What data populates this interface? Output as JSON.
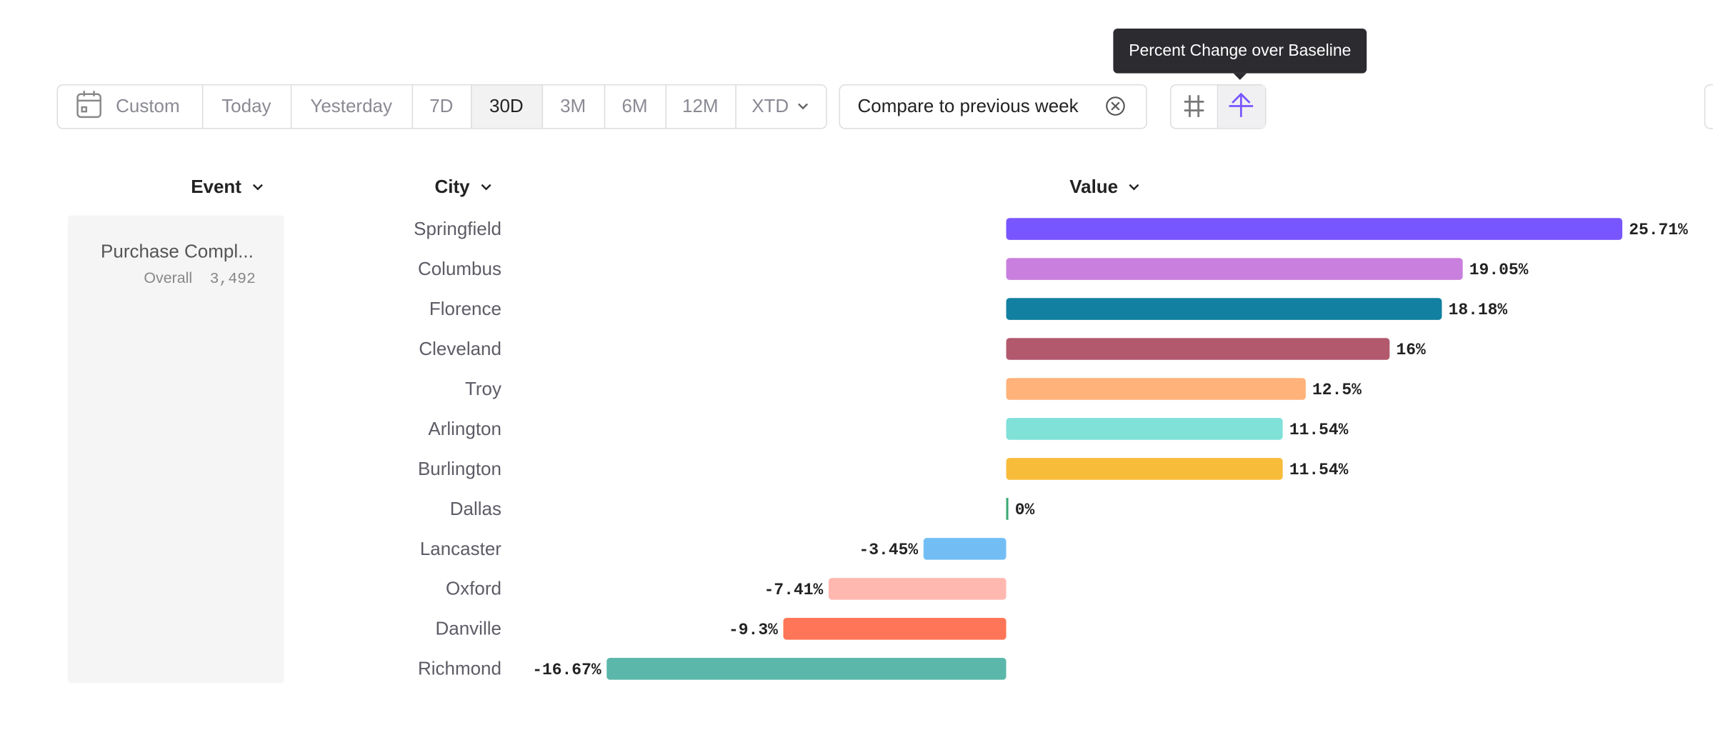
{
  "toolbar": {
    "ranges": [
      "Custom",
      "Today",
      "Yesterday",
      "7D",
      "30D",
      "3M",
      "6M",
      "12M",
      "XTD"
    ],
    "selected": "30D",
    "compare": "Compare to previous week"
  },
  "tooltip": "Percent Change over Baseline",
  "columns": [
    "Event",
    "City",
    "Value"
  ],
  "event": {
    "name": "Purchase Compl...",
    "scope": "Overall",
    "count": "3,492"
  },
  "chart_data": {
    "type": "bar",
    "orientation": "horizontal",
    "categories": [
      "Springfield",
      "Columbus",
      "Florence",
      "Cleveland",
      "Troy",
      "Arlington",
      "Burlington",
      "Dallas",
      "Lancaster",
      "Oxford",
      "Danville",
      "Richmond"
    ],
    "values": [
      25.71,
      19.05,
      18.18,
      16,
      12.5,
      11.54,
      11.54,
      0,
      -3.45,
      -7.41,
      -9.3,
      -16.67
    ],
    "value_labels": [
      "25.71%",
      "19.05%",
      "18.18%",
      "16%",
      "12.5%",
      "11.54%",
      "11.54%",
      "0%",
      "-3.45%",
      "-7.41%",
      "-9.3%",
      "-16.67%"
    ],
    "colors": [
      "#7856ff",
      "#c97fdd",
      "#1280a0",
      "#b2596e",
      "#ffb27a",
      "#80e1d9",
      "#f8bc3b",
      "#3ba974",
      "#72bef4",
      "#ffb8b0",
      "#ff7557",
      "#5bb7a9"
    ]
  }
}
